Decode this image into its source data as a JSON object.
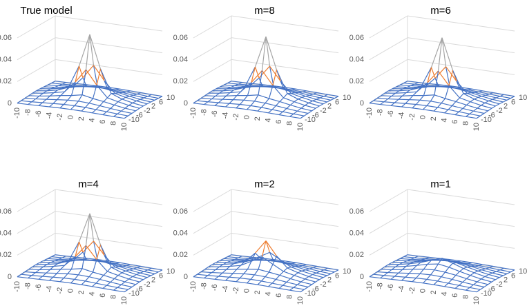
{
  "chart_data": [
    {
      "type": "surface",
      "title": "True model",
      "colors": [
        "#4472c4",
        "#ed7d31",
        "#a5a5a5"
      ],
      "x": [
        -10,
        -8,
        -6,
        -4,
        -2,
        0,
        2,
        4,
        6,
        8,
        10
      ],
      "y": [
        -10,
        -8,
        -6,
        -4,
        -2,
        0,
        2,
        4,
        6,
        8,
        10
      ],
      "xticks": [
        -10,
        -8,
        -6,
        -4,
        -2,
        0,
        2,
        4,
        6,
        8,
        10
      ],
      "yticks": [
        10,
        6,
        2,
        -2,
        -6,
        -10
      ],
      "zlim": [
        0,
        0.06
      ],
      "zticks": [
        0,
        0.02,
        0.04,
        0.06
      ],
      "z": [
        [
          0.0002,
          0.0004,
          0.0007,
          0.001,
          0.0013,
          0.0014,
          0.0013,
          0.001,
          0.0007,
          0.0004,
          0.0002
        ],
        [
          0.0004,
          0.0008,
          0.0014,
          0.002,
          0.0026,
          0.0028,
          0.0026,
          0.002,
          0.0014,
          0.0008,
          0.0004
        ],
        [
          0.0007,
          0.0014,
          0.0024,
          0.0035,
          0.0045,
          0.0049,
          0.0045,
          0.0035,
          0.0024,
          0.0014,
          0.0007
        ],
        [
          0.001,
          0.002,
          0.0035,
          0.0053,
          0.0067,
          0.0087,
          0.0067,
          0.0053,
          0.0035,
          0.002,
          0.001
        ],
        [
          0.0013,
          0.0026,
          0.0045,
          0.0067,
          0.017,
          0.0297,
          0.017,
          0.0067,
          0.0045,
          0.0026,
          0.0013
        ],
        [
          0.0014,
          0.0028,
          0.0049,
          0.0087,
          0.0297,
          0.06,
          0.0297,
          0.0087,
          0.0049,
          0.0028,
          0.0014
        ],
        [
          0.0013,
          0.0026,
          0.0045,
          0.0067,
          0.017,
          0.0297,
          0.017,
          0.0067,
          0.0045,
          0.0026,
          0.0013
        ],
        [
          0.001,
          0.002,
          0.0035,
          0.0053,
          0.0067,
          0.0087,
          0.0067,
          0.0053,
          0.0035,
          0.002,
          0.001
        ],
        [
          0.0007,
          0.0014,
          0.0024,
          0.0035,
          0.0045,
          0.0049,
          0.0045,
          0.0035,
          0.0024,
          0.0014,
          0.0007
        ],
        [
          0.0004,
          0.0008,
          0.0014,
          0.002,
          0.0026,
          0.0028,
          0.0026,
          0.002,
          0.0014,
          0.0008,
          0.0004
        ],
        [
          0.0002,
          0.0004,
          0.0007,
          0.001,
          0.0013,
          0.0014,
          0.0013,
          0.001,
          0.0007,
          0.0004,
          0.0002
        ]
      ]
    },
    {
      "type": "surface",
      "title": "m=8",
      "colors": [
        "#4472c4",
        "#ed7d31",
        "#a5a5a5"
      ],
      "x": [
        -10,
        -8,
        -6,
        -4,
        -2,
        0,
        2,
        4,
        6,
        8,
        10
      ],
      "y": [
        -10,
        -8,
        -6,
        -4,
        -2,
        0,
        2,
        4,
        6,
        8,
        10
      ],
      "xticks": [
        -10,
        -8,
        -6,
        -4,
        -2,
        0,
        2,
        4,
        6,
        8,
        10
      ],
      "yticks": [
        10,
        6,
        2,
        -2,
        -6,
        -10
      ],
      "zlim": [
        0,
        0.06
      ],
      "zticks": [
        0,
        0.02,
        0.04,
        0.06
      ],
      "z": [
        [
          0.0002,
          0.0004,
          0.0007,
          0.001,
          0.0013,
          0.0014,
          0.0013,
          0.001,
          0.0007,
          0.0004,
          0.0002
        ],
        [
          0.0004,
          0.0008,
          0.0014,
          0.002,
          0.0026,
          0.0028,
          0.0026,
          0.002,
          0.0014,
          0.0008,
          0.0004
        ],
        [
          0.0007,
          0.0014,
          0.0024,
          0.0035,
          0.0045,
          0.0049,
          0.0045,
          0.0035,
          0.0024,
          0.0014,
          0.0007
        ],
        [
          0.001,
          0.002,
          0.0035,
          0.0053,
          0.0067,
          0.0086,
          0.0067,
          0.0053,
          0.0035,
          0.002,
          0.001
        ],
        [
          0.0013,
          0.0026,
          0.0045,
          0.0067,
          0.0167,
          0.0289,
          0.0167,
          0.0067,
          0.0045,
          0.0026,
          0.0013
        ],
        [
          0.0014,
          0.0028,
          0.0049,
          0.0086,
          0.0289,
          0.058,
          0.0289,
          0.0086,
          0.0049,
          0.0028,
          0.0014
        ],
        [
          0.0013,
          0.0026,
          0.0045,
          0.0067,
          0.0167,
          0.0289,
          0.0167,
          0.0067,
          0.0045,
          0.0026,
          0.0013
        ],
        [
          0.001,
          0.002,
          0.0035,
          0.0053,
          0.0067,
          0.0086,
          0.0067,
          0.0053,
          0.0035,
          0.002,
          0.001
        ],
        [
          0.0007,
          0.0014,
          0.0024,
          0.0035,
          0.0045,
          0.0049,
          0.0045,
          0.0035,
          0.0024,
          0.0014,
          0.0007
        ],
        [
          0.0004,
          0.0008,
          0.0014,
          0.002,
          0.0026,
          0.0028,
          0.0026,
          0.002,
          0.0014,
          0.0008,
          0.0004
        ],
        [
          0.0002,
          0.0004,
          0.0007,
          0.001,
          0.0013,
          0.0014,
          0.0013,
          0.001,
          0.0007,
          0.0004,
          0.0002
        ]
      ]
    },
    {
      "type": "surface",
      "title": "m=6",
      "colors": [
        "#4472c4",
        "#ed7d31",
        "#a5a5a5"
      ],
      "x": [
        -10,
        -8,
        -6,
        -4,
        -2,
        0,
        2,
        4,
        6,
        8,
        10
      ],
      "y": [
        -10,
        -8,
        -6,
        -4,
        -2,
        0,
        2,
        4,
        6,
        8,
        10
      ],
      "xticks": [
        -10,
        -8,
        -6,
        -4,
        -2,
        0,
        2,
        4,
        6,
        8,
        10
      ],
      "yticks": [
        10,
        6,
        2,
        -2,
        -6,
        -10
      ],
      "zlim": [
        0,
        0.06
      ],
      "zticks": [
        0,
        0.02,
        0.04,
        0.06
      ],
      "z": [
        [
          0.0002,
          0.0004,
          0.0007,
          0.001,
          0.0013,
          0.0014,
          0.0013,
          0.001,
          0.0007,
          0.0004,
          0.0002
        ],
        [
          0.0004,
          0.0008,
          0.0014,
          0.002,
          0.0026,
          0.0028,
          0.0026,
          0.002,
          0.0014,
          0.0008,
          0.0004
        ],
        [
          0.0007,
          0.0014,
          0.0024,
          0.0035,
          0.0045,
          0.0049,
          0.0045,
          0.0035,
          0.0024,
          0.0014,
          0.0007
        ],
        [
          0.001,
          0.002,
          0.0035,
          0.0053,
          0.0067,
          0.0086,
          0.0067,
          0.0053,
          0.0035,
          0.002,
          0.001
        ],
        [
          0.0013,
          0.0026,
          0.0045,
          0.0067,
          0.0165,
          0.0285,
          0.0165,
          0.0067,
          0.0045,
          0.0026,
          0.0013
        ],
        [
          0.0014,
          0.0028,
          0.0049,
          0.0086,
          0.0285,
          0.057,
          0.0285,
          0.0086,
          0.0049,
          0.0028,
          0.0014
        ],
        [
          0.0013,
          0.0026,
          0.0045,
          0.0067,
          0.0165,
          0.0285,
          0.0165,
          0.0067,
          0.0045,
          0.0026,
          0.0013
        ],
        [
          0.001,
          0.002,
          0.0035,
          0.0053,
          0.0067,
          0.0086,
          0.0067,
          0.0053,
          0.0035,
          0.002,
          0.001
        ],
        [
          0.0007,
          0.0014,
          0.0024,
          0.0035,
          0.0045,
          0.0049,
          0.0045,
          0.0035,
          0.0024,
          0.0014,
          0.0007
        ],
        [
          0.0004,
          0.0008,
          0.0014,
          0.002,
          0.0026,
          0.0028,
          0.0026,
          0.002,
          0.0014,
          0.0008,
          0.0004
        ],
        [
          0.0002,
          0.0004,
          0.0007,
          0.001,
          0.0013,
          0.0014,
          0.0013,
          0.001,
          0.0007,
          0.0004,
          0.0002
        ]
      ]
    },
    {
      "type": "surface",
      "title": "m=4",
      "colors": [
        "#4472c4",
        "#ed7d31",
        "#a5a5a5"
      ],
      "x": [
        -10,
        -8,
        -6,
        -4,
        -2,
        0,
        2,
        4,
        6,
        8,
        10
      ],
      "y": [
        -10,
        -8,
        -6,
        -4,
        -2,
        0,
        2,
        4,
        6,
        8,
        10
      ],
      "xticks": [
        -10,
        -8,
        -6,
        -4,
        -2,
        0,
        2,
        4,
        6,
        8,
        10
      ],
      "yticks": [
        10,
        6,
        2,
        -2,
        -6,
        -10
      ],
      "zlim": [
        0,
        0.06
      ],
      "zticks": [
        0,
        0.02,
        0.04,
        0.06
      ],
      "z": [
        [
          0.0002,
          0.0004,
          0.0007,
          0.001,
          0.0013,
          0.0014,
          0.0013,
          0.001,
          0.0007,
          0.0004,
          0.0002
        ],
        [
          0.0004,
          0.0008,
          0.0014,
          0.002,
          0.0026,
          0.0028,
          0.0026,
          0.002,
          0.0014,
          0.0008,
          0.0004
        ],
        [
          0.0007,
          0.0014,
          0.0024,
          0.0035,
          0.0045,
          0.0049,
          0.0045,
          0.0035,
          0.0024,
          0.0014,
          0.0007
        ],
        [
          0.001,
          0.002,
          0.0035,
          0.0053,
          0.0067,
          0.0086,
          0.0067,
          0.0053,
          0.0035,
          0.002,
          0.001
        ],
        [
          0.0013,
          0.0026,
          0.0045,
          0.0067,
          0.0162,
          0.0277,
          0.0162,
          0.0067,
          0.0045,
          0.0026,
          0.0013
        ],
        [
          0.0014,
          0.0028,
          0.0049,
          0.0086,
          0.0277,
          0.055,
          0.0277,
          0.0086,
          0.0049,
          0.0028,
          0.0014
        ],
        [
          0.0013,
          0.0026,
          0.0045,
          0.0067,
          0.0162,
          0.0277,
          0.0162,
          0.0067,
          0.0045,
          0.0026,
          0.0013
        ],
        [
          0.001,
          0.002,
          0.0035,
          0.0053,
          0.0067,
          0.0086,
          0.0067,
          0.0053,
          0.0035,
          0.002,
          0.001
        ],
        [
          0.0007,
          0.0014,
          0.0024,
          0.0035,
          0.0045,
          0.0049,
          0.0045,
          0.0035,
          0.0024,
          0.0014,
          0.0007
        ],
        [
          0.0004,
          0.0008,
          0.0014,
          0.002,
          0.0026,
          0.0028,
          0.0026,
          0.002,
          0.0014,
          0.0008,
          0.0004
        ],
        [
          0.0002,
          0.0004,
          0.0007,
          0.001,
          0.0013,
          0.0014,
          0.0013,
          0.001,
          0.0007,
          0.0004,
          0.0002
        ]
      ]
    },
    {
      "type": "surface",
      "title": "m=2",
      "colors": [
        "#4472c4",
        "#ed7d31",
        "#a5a5a5"
      ],
      "x": [
        -10,
        -8,
        -6,
        -4,
        -2,
        0,
        2,
        4,
        6,
        8,
        10
      ],
      "y": [
        -10,
        -8,
        -6,
        -4,
        -2,
        0,
        2,
        4,
        6,
        8,
        10
      ],
      "xticks": [
        -10,
        -8,
        -6,
        -4,
        -2,
        0,
        2,
        4,
        6,
        8,
        10
      ],
      "yticks": [
        10,
        6,
        2,
        -2,
        -6,
        -10
      ],
      "zlim": [
        0,
        0.06
      ],
      "zticks": [
        0,
        0.02,
        0.04,
        0.06
      ],
      "z": [
        [
          0.0002,
          0.0004,
          0.0007,
          0.001,
          0.0013,
          0.0014,
          0.0013,
          0.001,
          0.0007,
          0.0004,
          0.0002
        ],
        [
          0.0004,
          0.0008,
          0.0014,
          0.002,
          0.0026,
          0.0028,
          0.0026,
          0.002,
          0.0014,
          0.0008,
          0.0004
        ],
        [
          0.0007,
          0.0014,
          0.0024,
          0.0035,
          0.0045,
          0.0049,
          0.0045,
          0.0035,
          0.0024,
          0.0014,
          0.0007
        ],
        [
          0.001,
          0.002,
          0.0035,
          0.0053,
          0.0067,
          0.0079,
          0.0067,
          0.0053,
          0.0035,
          0.002,
          0.001
        ],
        [
          0.0013,
          0.0026,
          0.0045,
          0.0067,
          0.0119,
          0.0174,
          0.0119,
          0.0067,
          0.0045,
          0.0026,
          0.0013
        ],
        [
          0.0014,
          0.0028,
          0.0049,
          0.0079,
          0.0174,
          0.03,
          0.0174,
          0.0079,
          0.0049,
          0.0028,
          0.0014
        ],
        [
          0.0013,
          0.0026,
          0.0045,
          0.0067,
          0.0119,
          0.0174,
          0.0119,
          0.0067,
          0.0045,
          0.0026,
          0.0013
        ],
        [
          0.001,
          0.002,
          0.0035,
          0.0053,
          0.0067,
          0.0079,
          0.0067,
          0.0053,
          0.0035,
          0.002,
          0.001
        ],
        [
          0.0007,
          0.0014,
          0.0024,
          0.0035,
          0.0045,
          0.0049,
          0.0045,
          0.0035,
          0.0024,
          0.0014,
          0.0007
        ],
        [
          0.0004,
          0.0008,
          0.0014,
          0.002,
          0.0026,
          0.0028,
          0.0026,
          0.002,
          0.0014,
          0.0008,
          0.0004
        ],
        [
          0.0002,
          0.0004,
          0.0007,
          0.001,
          0.0013,
          0.0014,
          0.0013,
          0.001,
          0.0007,
          0.0004,
          0.0002
        ]
      ]
    },
    {
      "type": "surface",
      "title": "m=1",
      "colors": [
        "#4472c4",
        "#ed7d31",
        "#a5a5a5"
      ],
      "x": [
        -10,
        -8,
        -6,
        -4,
        -2,
        0,
        2,
        4,
        6,
        8,
        10
      ],
      "y": [
        -10,
        -8,
        -6,
        -4,
        -2,
        0,
        2,
        4,
        6,
        8,
        10
      ],
      "xticks": [
        -10,
        -8,
        -6,
        -4,
        -2,
        0,
        2,
        4,
        6,
        8,
        10
      ],
      "yticks": [
        10,
        6,
        2,
        -2,
        -6,
        -10
      ],
      "zlim": [
        0,
        0.06
      ],
      "zticks": [
        0,
        0.02,
        0.04,
        0.06
      ],
      "z": [
        [
          0.0002,
          0.0004,
          0.0007,
          0.001,
          0.0013,
          0.0014,
          0.0013,
          0.001,
          0.0007,
          0.0004,
          0.0002
        ],
        [
          0.0004,
          0.0008,
          0.0014,
          0.002,
          0.0026,
          0.0028,
          0.0026,
          0.002,
          0.0014,
          0.0008,
          0.0004
        ],
        [
          0.0007,
          0.0014,
          0.0024,
          0.0035,
          0.0045,
          0.0049,
          0.0045,
          0.0035,
          0.0024,
          0.0014,
          0.0007
        ],
        [
          0.001,
          0.002,
          0.0035,
          0.0053,
          0.0067,
          0.0074,
          0.0067,
          0.0053,
          0.0035,
          0.002,
          0.001
        ],
        [
          0.0013,
          0.0026,
          0.0045,
          0.0067,
          0.0092,
          0.0108,
          0.0092,
          0.0067,
          0.0045,
          0.0026,
          0.0013
        ],
        [
          0.0014,
          0.0028,
          0.0049,
          0.0074,
          0.0108,
          0.014,
          0.0108,
          0.0074,
          0.0049,
          0.0028,
          0.0014
        ],
        [
          0.0013,
          0.0026,
          0.0045,
          0.0067,
          0.0092,
          0.0108,
          0.0092,
          0.0067,
          0.0045,
          0.0026,
          0.0013
        ],
        [
          0.001,
          0.002,
          0.0035,
          0.0053,
          0.0067,
          0.0074,
          0.0067,
          0.0053,
          0.0035,
          0.002,
          0.001
        ],
        [
          0.0007,
          0.0014,
          0.0024,
          0.0035,
          0.0045,
          0.0049,
          0.0045,
          0.0035,
          0.0024,
          0.0014,
          0.0007
        ],
        [
          0.0004,
          0.0008,
          0.0014,
          0.002,
          0.0026,
          0.0028,
          0.0026,
          0.002,
          0.0014,
          0.0008,
          0.0004
        ],
        [
          0.0002,
          0.0004,
          0.0007,
          0.001,
          0.0013,
          0.0014,
          0.0013,
          0.001,
          0.0007,
          0.0004,
          0.0002
        ]
      ]
    }
  ]
}
